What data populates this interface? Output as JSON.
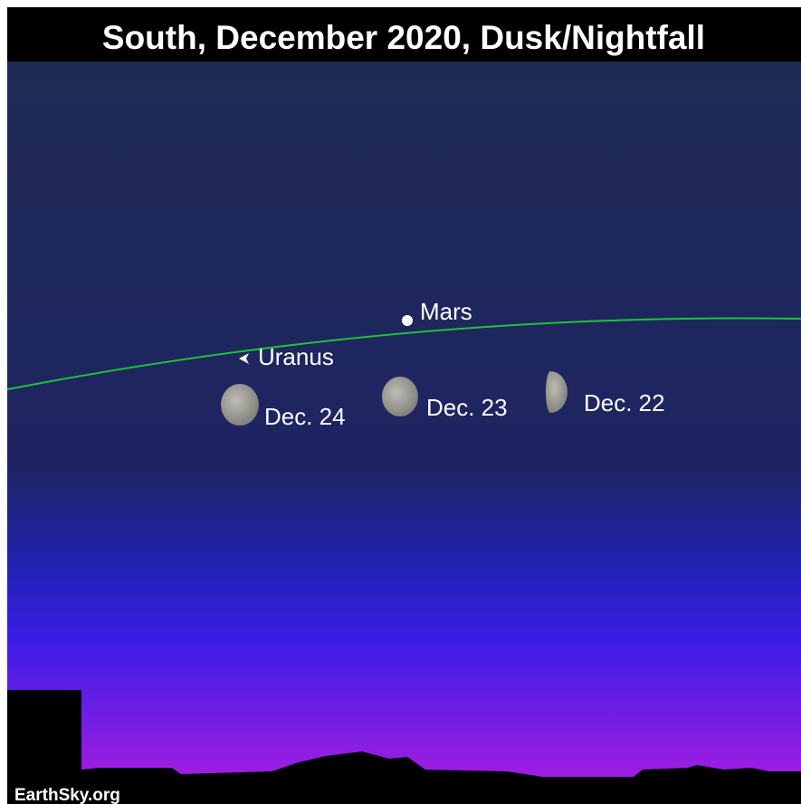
{
  "title": "South, December 2020, Dusk/Nightfall",
  "labels": {
    "mars": "Mars",
    "uranus": "Uranus",
    "moons": [
      "Dec. 24",
      "Dec. 23",
      "Dec. 22"
    ]
  },
  "credit": "EarthSky.org"
}
